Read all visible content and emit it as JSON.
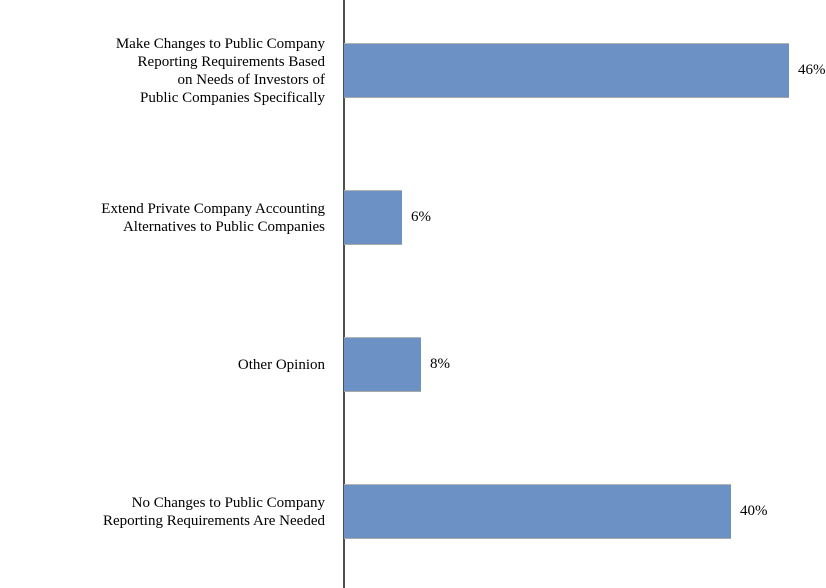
{
  "page": {
    "background": "#ffffff"
  },
  "chart_data": {
    "type": "bar",
    "orientation": "horizontal",
    "title": "",
    "xlabel": "",
    "ylabel": "",
    "categories": [
      "Make Changes to Public Company Reporting Requirements Based on Needs of Investors of Public Companies Specifically",
      "Extend Private Company Accounting Alternatives to Public Companies",
      "Other Opinion",
      "No Changes to Public Company Reporting Requirements Are Needed"
    ],
    "category_lines": [
      [
        "Make Changes to Public Company",
        "Reporting Requirements Based",
        "on Needs of Investors of",
        "Public Companies Specifically"
      ],
      [
        "Extend Private Company Accounting",
        "Alternatives to Public Companies"
      ],
      [
        "Other Opinion"
      ],
      [
        "No Changes to Public Company",
        "Reporting Requirements Are Needed"
      ]
    ],
    "values": [
      46,
      6,
      8,
      40
    ],
    "value_labels": [
      "46%",
      "6%",
      "8%",
      "40%"
    ],
    "xlim": [
      0,
      50
    ],
    "grid": false,
    "legend": false,
    "bar_color": "#6b91c5",
    "bar_edge_color": "#b3b3b3",
    "axis_color": "#4d4d4d",
    "text_color": "#000000"
  }
}
